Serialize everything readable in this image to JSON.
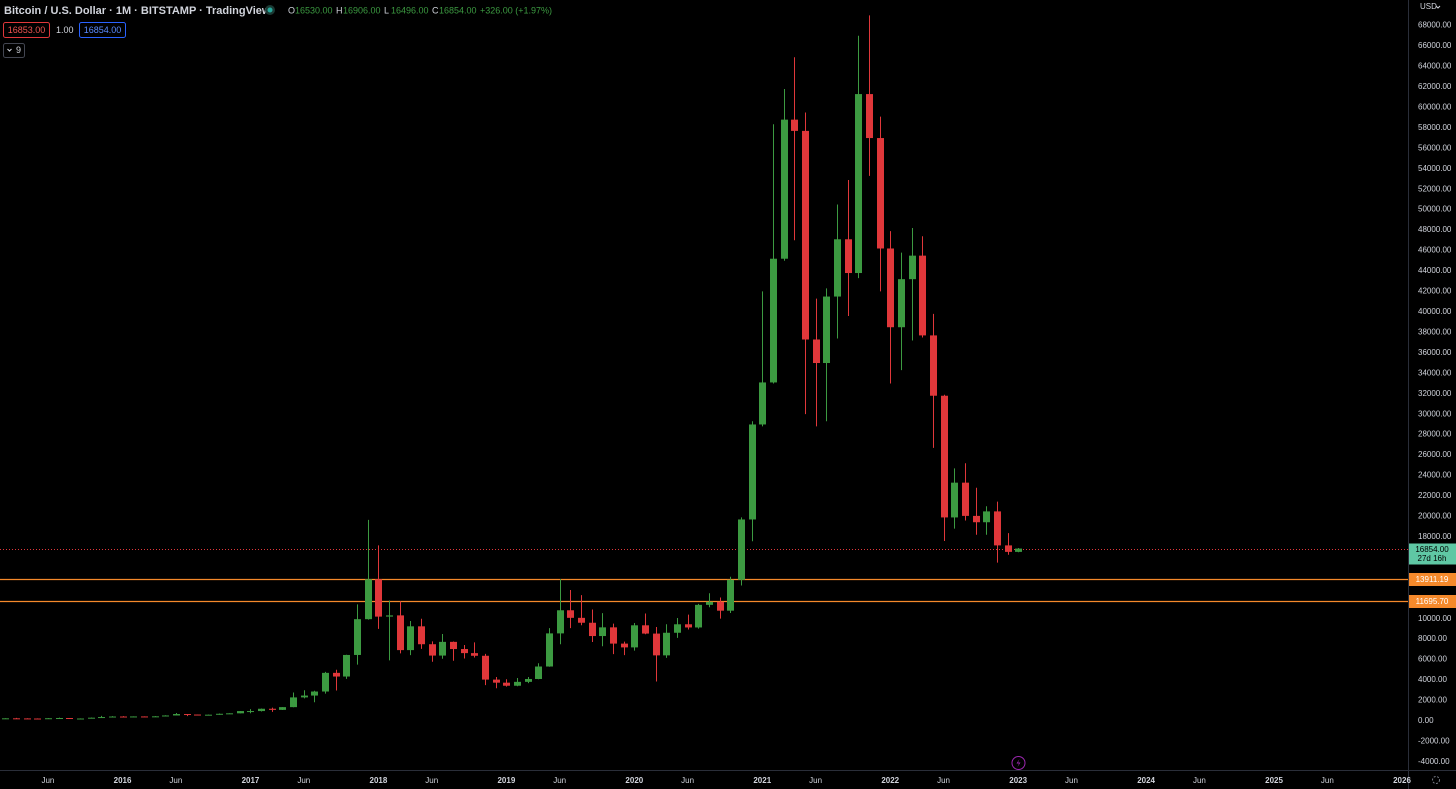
{
  "chart_data": {
    "type": "candlestick",
    "title": "Bitcoin / U.S. Dollar · 1M · BITSTAMP · TradingView",
    "header": {
      "ohlc": [
        {
          "key": "O",
          "value": "16530.00"
        },
        {
          "key": "H",
          "value": "16906.00"
        },
        {
          "key": "L",
          "value": "16496.00"
        },
        {
          "key": "C",
          "value": "16854.00"
        }
      ],
      "change": "+326.00 (+1.97%)",
      "bid": "16853.00",
      "spread": "1.00",
      "ask": "16854.00",
      "indicators": "9"
    },
    "currency": "USD",
    "up_color": "#3c9a41",
    "down_color": "#e0373a",
    "x": [
      "2015-01",
      "2015-02",
      "2015-03",
      "2015-04",
      "2015-05",
      "2015-06",
      "2015-07",
      "2015-08",
      "2015-09",
      "2015-10",
      "2015-11",
      "2015-12",
      "2016-01",
      "2016-02",
      "2016-03",
      "2016-04",
      "2016-05",
      "2016-06",
      "2016-07",
      "2016-08",
      "2016-09",
      "2016-10",
      "2016-11",
      "2016-12",
      "2017-01",
      "2017-02",
      "2017-03",
      "2017-04",
      "2017-05",
      "2017-06",
      "2017-07",
      "2017-08",
      "2017-09",
      "2017-10",
      "2017-11",
      "2017-12",
      "2018-01",
      "2018-02",
      "2018-03",
      "2018-04",
      "2018-05",
      "2018-06",
      "2018-07",
      "2018-08",
      "2018-09",
      "2018-10",
      "2018-11",
      "2018-12",
      "2019-01",
      "2019-02",
      "2019-03",
      "2019-04",
      "2019-05",
      "2019-06",
      "2019-07",
      "2019-08",
      "2019-09",
      "2019-10",
      "2019-11",
      "2019-12",
      "2020-01",
      "2020-02",
      "2020-03",
      "2020-04",
      "2020-05",
      "2020-06",
      "2020-07",
      "2020-08",
      "2020-09",
      "2020-10",
      "2020-11",
      "2020-12",
      "2021-01",
      "2021-02",
      "2021-03",
      "2021-04",
      "2021-05",
      "2021-06",
      "2021-07",
      "2021-08",
      "2021-09",
      "2021-10",
      "2021-11",
      "2021-12",
      "2022-01",
      "2022-02",
      "2022-03",
      "2022-04",
      "2022-05",
      "2022-06",
      "2022-07",
      "2022-08",
      "2022-09",
      "2022-10",
      "2022-11",
      "2022-12",
      "2023-01"
    ],
    "open": [
      320,
      217,
      254,
      244,
      236,
      230,
      263,
      284,
      230,
      236,
      314,
      378,
      430,
      368,
      437,
      416,
      448,
      531,
      673,
      624,
      575,
      609,
      698,
      742,
      963,
      965,
      1190,
      1080,
      1348,
      2300,
      2480,
      2875,
      4700,
      4340,
      6450,
      9950,
      13850,
      10200,
      10320,
      6925,
      9250,
      7500,
      6390,
      7730,
      7030,
      6630,
      6370,
      4040,
      3740,
      3440,
      3820,
      4100,
      5320,
      8560,
      10820,
      10080,
      9600,
      8300,
      9150,
      7560,
      7190,
      9350,
      8540,
      6410,
      8620,
      9450,
      9140,
      11350,
      11650,
      10780,
      13800,
      19700,
      28990,
      33100,
      45200,
      58800,
      57700,
      37300,
      35000,
      41500,
      47100,
      43800,
      61300,
      57000,
      46200,
      38500,
      43200,
      45500,
      37700,
      31800,
      19900,
      23300,
      20050,
      19430,
      20490,
      17165,
      16530
    ],
    "high": [
      320,
      265,
      300,
      260,
      246,
      268,
      318,
      285,
      245,
      330,
      495,
      466,
      466,
      445,
      440,
      467,
      549,
      780,
      680,
      630,
      614,
      720,
      750,
      970,
      1150,
      1210,
      1300,
      1350,
      2780,
      3000,
      2950,
      4800,
      5000,
      6470,
      11400,
      19666,
      17170,
      11780,
      11700,
      9770,
      9990,
      7780,
      8500,
      7770,
      7420,
      7680,
      6560,
      4300,
      4080,
      4200,
      4290,
      5640,
      9070,
      13880,
      12800,
      12300,
      10900,
      10540,
      9510,
      7750,
      9580,
      10500,
      9190,
      9450,
      10070,
      10390,
      11450,
      12480,
      12070,
      14100,
      19900,
      29300,
      42000,
      58350,
      61800,
      64900,
      59500,
      41300,
      42300,
      50500,
      52900,
      67000,
      69000,
      59100,
      47900,
      45800,
      48200,
      47400,
      39800,
      31900,
      24700,
      25200,
      22800,
      20990,
      21450,
      18360,
      16906
    ],
    "low": [
      166,
      212,
      236,
      213,
      228,
      222,
      255,
      199,
      225,
      236,
      310,
      350,
      350,
      366,
      410,
      414,
      438,
      525,
      470,
      540,
      570,
      604,
      690,
      740,
      752,
      915,
      890,
      1070,
      1340,
      2200,
      1830,
      2670,
      2970,
      4110,
      5500,
      9900,
      9000,
      5920,
      6600,
      6430,
      7040,
      5780,
      6080,
      5880,
      6100,
      6200,
      3500,
      3200,
      3350,
      3390,
      3700,
      4070,
      5300,
      7500,
      9070,
      9360,
      7720,
      7300,
      6530,
      6430,
      6870,
      8470,
      3850,
      6160,
      8120,
      8940,
      9030,
      11110,
      10000,
      10550,
      13240,
      17570,
      28800,
      33000,
      45000,
      47000,
      30000,
      28800,
      29300,
      37400,
      39600,
      43300,
      53300,
      42000,
      33000,
      34300,
      37200,
      37500,
      26700,
      17600,
      18800,
      19600,
      18200,
      18200,
      15480,
      16250,
      16496
    ],
    "close": [
      217,
      254,
      244,
      236,
      230,
      263,
      284,
      230,
      236,
      314,
      378,
      430,
      368,
      437,
      416,
      448,
      531,
      673,
      624,
      575,
      609,
      698,
      742,
      963,
      965,
      1190,
      1080,
      1348,
      2300,
      2480,
      2875,
      4700,
      4340,
      6450,
      9950,
      13850,
      10200,
      10320,
      6925,
      9250,
      7500,
      6390,
      7730,
      7030,
      6630,
      6370,
      4040,
      3740,
      3440,
      3820,
      4100,
      5320,
      8560,
      10820,
      10080,
      9600,
      8300,
      9150,
      7560,
      7190,
      9350,
      8540,
      6410,
      8620,
      9450,
      9140,
      11350,
      11650,
      10780,
      13800,
      19700,
      28990,
      33100,
      45200,
      58800,
      57700,
      37300,
      35000,
      41500,
      47100,
      43800,
      61300,
      57000,
      46200,
      38500,
      43200,
      45500,
      37700,
      31800,
      19900,
      23300,
      20050,
      19430,
      20490,
      17165,
      16530,
      16854
    ],
    "xlim": [
      "2015-01",
      "2026-01"
    ],
    "xticks": [
      {
        "value": "2015-06",
        "label": "Jun"
      },
      {
        "value": "2016-01",
        "label": "2016"
      },
      {
        "value": "2016-06",
        "label": "Jun"
      },
      {
        "value": "2017-01",
        "label": "2017"
      },
      {
        "value": "2017-06",
        "label": "Jun"
      },
      {
        "value": "2018-01",
        "label": "2018"
      },
      {
        "value": "2018-06",
        "label": "Jun"
      },
      {
        "value": "2019-01",
        "label": "2019"
      },
      {
        "value": "2019-06",
        "label": "Jun"
      },
      {
        "value": "2020-01",
        "label": "2020"
      },
      {
        "value": "2020-06",
        "label": "Jun"
      },
      {
        "value": "2021-01",
        "label": "2021"
      },
      {
        "value": "2021-06",
        "label": "Jun"
      },
      {
        "value": "2022-01",
        "label": "2022"
      },
      {
        "value": "2022-06",
        "label": "Jun"
      },
      {
        "value": "2023-01",
        "label": "2023"
      },
      {
        "value": "2023-06",
        "label": "Jun"
      },
      {
        "value": "2024-01",
        "label": "2024"
      },
      {
        "value": "2024-06",
        "label": "Jun"
      },
      {
        "value": "2025-01",
        "label": "2025"
      },
      {
        "value": "2025-06",
        "label": "Jun"
      },
      {
        "value": "2026-01",
        "label": "2026"
      }
    ],
    "ylim": [
      -4800,
      70500
    ],
    "yticks": [
      {
        "value": 68000,
        "label": "68000.00"
      },
      {
        "value": 66000,
        "label": "66000.00"
      },
      {
        "value": 64000,
        "label": "64000.00"
      },
      {
        "value": 62000,
        "label": "62000.00"
      },
      {
        "value": 60000,
        "label": "60000.00"
      },
      {
        "value": 58000,
        "label": "58000.00"
      },
      {
        "value": 56000,
        "label": "56000.00"
      },
      {
        "value": 54000,
        "label": "54000.00"
      },
      {
        "value": 52000,
        "label": "52000.00"
      },
      {
        "value": 50000,
        "label": "50000.00"
      },
      {
        "value": 48000,
        "label": "48000.00"
      },
      {
        "value": 46000,
        "label": "46000.00"
      },
      {
        "value": 44000,
        "label": "44000.00"
      },
      {
        "value": 42000,
        "label": "42000.00"
      },
      {
        "value": 40000,
        "label": "40000.00"
      },
      {
        "value": 38000,
        "label": "38000.00"
      },
      {
        "value": 36000,
        "label": "36000.00"
      },
      {
        "value": 34000,
        "label": "34000.00"
      },
      {
        "value": 32000,
        "label": "32000.00"
      },
      {
        "value": 30000,
        "label": "30000.00"
      },
      {
        "value": 28000,
        "label": "28000.00"
      },
      {
        "value": 26000,
        "label": "26000.00"
      },
      {
        "value": 24000,
        "label": "24000.00"
      },
      {
        "value": 22000,
        "label": "22000.00"
      },
      {
        "value": 20000,
        "label": "20000.00"
      },
      {
        "value": 18000,
        "label": "18000.00"
      },
      {
        "value": 10000,
        "label": "10000.00"
      },
      {
        "value": 8000,
        "label": "8000.00"
      },
      {
        "value": 6000,
        "label": "6000.00"
      },
      {
        "value": 4000,
        "label": "4000.00"
      },
      {
        "value": 2000,
        "label": "2000.00"
      },
      {
        "value": 0,
        "label": "0.00"
      },
      {
        "value": -2000,
        "label": "-2000.00"
      },
      {
        "value": -4000,
        "label": "-4000.00"
      }
    ],
    "last_price": {
      "value": 16854,
      "label": "16854.00",
      "countdown": "27d 16h",
      "color": "#e0373a",
      "label_color": "#5fc7a4"
    },
    "lines": [
      {
        "value": 13911.19,
        "label": "13911.19",
        "color": "#f5892b"
      },
      {
        "value": 11695.7,
        "label": "11695.70",
        "color": "#f5892b"
      }
    ]
  }
}
